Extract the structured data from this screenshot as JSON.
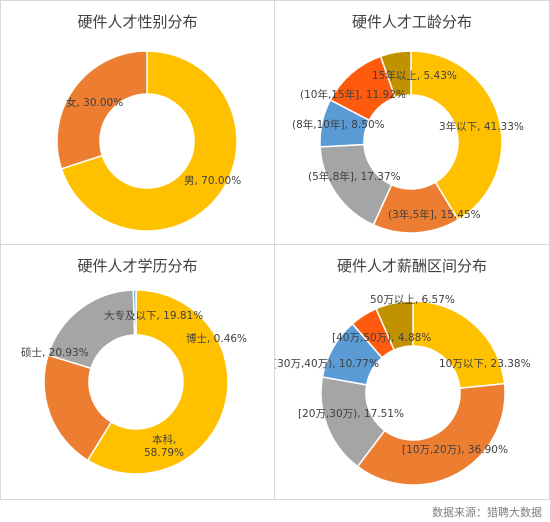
{
  "colors": [
    "#FFC000",
    "#ED7D31",
    "#A5A5A5",
    "#5B9BD5",
    "#FF5B0F",
    "#C09200"
  ],
  "chart_data": [
    {
      "type": "pie",
      "title": "硬件人才性别分布",
      "labels": [
        "男",
        "女"
      ],
      "values": [
        70.0,
        30.0
      ],
      "display": [
        "男, 70.00%",
        "女, 30.00%"
      ],
      "colors": [
        "#FFC000",
        "#ED7D31"
      ]
    },
    {
      "type": "pie",
      "title": "硬件人才工龄分布",
      "labels": [
        "3年以下",
        "(3年,5年]",
        "(5年,8年]",
        "(8年,10年]",
        "(10年,15年]",
        "15年以上"
      ],
      "values": [
        41.33,
        15.45,
        17.37,
        8.5,
        11.92,
        5.43
      ],
      "display": [
        "3年以下, 41.33%",
        "(3年,5年], 15.45%",
        "(5年,8年], 17.37%",
        "(8年,10年], 8.50%",
        "(10年,15年], 11.92%",
        "15年以上, 5.43%"
      ],
      "colors": [
        "#FFC000",
        "#ED7D31",
        "#A5A5A5",
        "#5B9BD5",
        "#FF5B0F",
        "#C09200"
      ]
    },
    {
      "type": "pie",
      "title": "硬件人才学历分布",
      "labels": [
        "本科",
        "硕士",
        "大专及以下",
        "博士"
      ],
      "values": [
        58.79,
        20.93,
        19.81,
        0.46
      ],
      "display": [
        "本科,",
        "58.79%",
        "硕士, 20.93%",
        "大专及以下, 19.81%",
        "博士, 0.46%"
      ],
      "colors": [
        "#FFC000",
        "#ED7D31",
        "#A5A5A5",
        "#5B9BD5"
      ]
    },
    {
      "type": "pie",
      "title": "硬件人才薪酬区间分布",
      "labels": [
        "10万以下",
        "(10万,20万)",
        "[20万,30万)",
        "[30万,40万)",
        "[40万,50万)",
        "50万以上"
      ],
      "values": [
        23.38,
        36.9,
        17.51,
        10.77,
        4.88,
        6.57
      ],
      "display": [
        "10万以下, 23.38%",
        "[10万,20万), 36.90%",
        "[20万,30万), 17.51%",
        "[30万,40万), 10.77%",
        "[40万,50万), 4.88%",
        "50万以上, 6.57%"
      ],
      "colors": [
        "#FFC000",
        "#ED7D31",
        "#A5A5A5",
        "#5B9BD5",
        "#FF5B0F",
        "#C09200"
      ]
    }
  ],
  "footer": "数据来源：猎聘大数据"
}
